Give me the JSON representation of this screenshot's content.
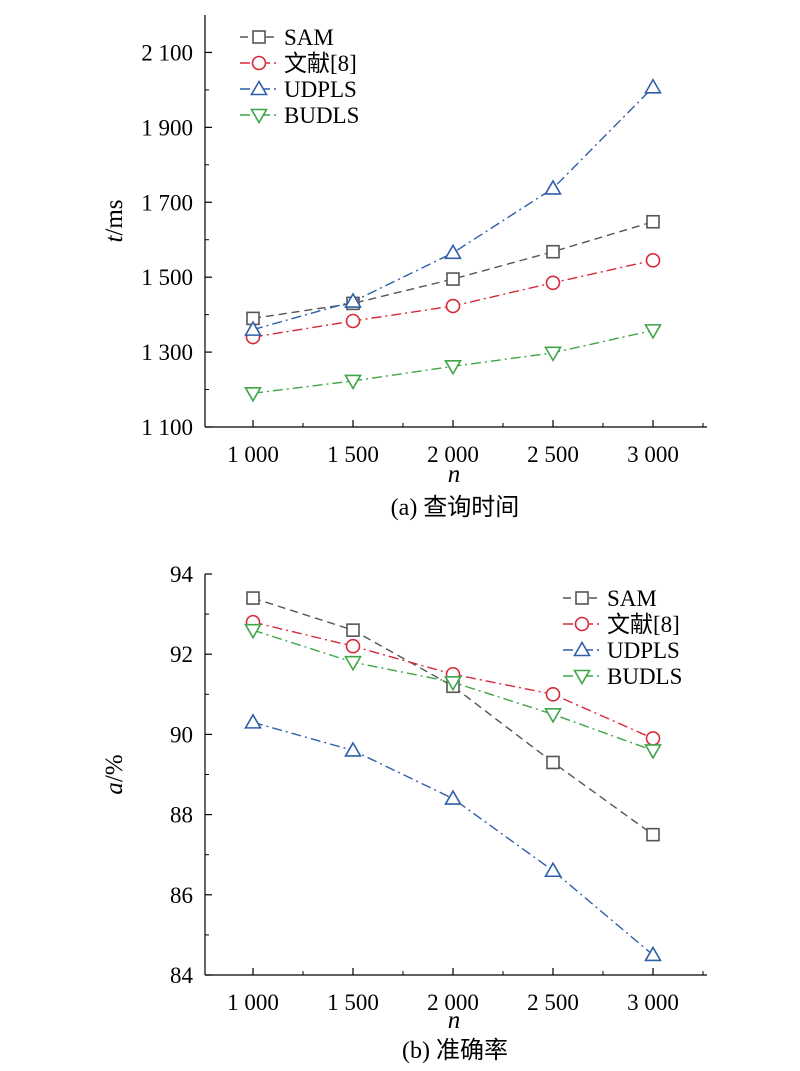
{
  "chart_data": [
    {
      "type": "line",
      "title": "(a) 查询时间",
      "xlabel": "n",
      "ylabel": "t/ms",
      "categories": [
        "1 000",
        "1 500",
        "2 000",
        "2 500",
        "3 000"
      ],
      "x": [
        1000,
        1500,
        2000,
        2500,
        3000
      ],
      "ylim": [
        1100,
        2200
      ],
      "yticks": [
        1100,
        1300,
        1500,
        1700,
        1900,
        2100
      ],
      "ytick_labels": [
        "1 100",
        "1 300",
        "1 500",
        "1 700",
        "1 900",
        "2 100"
      ],
      "legend": "top-left",
      "grid": false,
      "series": [
        {
          "name": "SAM",
          "color": "#555555",
          "marker": "square",
          "dash": "8,5",
          "values": [
            1390,
            1430,
            1495,
            1568,
            1648
          ]
        },
        {
          "name": "文献[8]",
          "color": "#d62a3a",
          "marker": "circle",
          "dash": "10,4,2,4",
          "values": [
            1340,
            1383,
            1423,
            1485,
            1545
          ]
        },
        {
          "name": "UDPLS",
          "color": "#2f5fa8",
          "marker": "triangle-up",
          "dash": "10,4,2,4",
          "values": [
            1360,
            1435,
            1565,
            1737,
            2007
          ]
        },
        {
          "name": "BUDLS",
          "color": "#3fa548",
          "marker": "triangle-down",
          "dash": "10,4,2,4",
          "values": [
            1190,
            1223,
            1262,
            1298,
            1358
          ]
        }
      ]
    },
    {
      "type": "line",
      "title": "(b) 准确率",
      "xlabel": "n",
      "ylabel": "a/%",
      "categories": [
        "1 000",
        "1 500",
        "2 000",
        "2 500",
        "3 000"
      ],
      "x": [
        1000,
        1500,
        2000,
        2500,
        3000
      ],
      "ylim": [
        84,
        94
      ],
      "yticks": [
        84,
        86,
        88,
        90,
        92,
        94
      ],
      "ytick_labels": [
        "84",
        "86",
        "88",
        "90",
        "92",
        "94"
      ],
      "legend": "top-right",
      "grid": false,
      "series": [
        {
          "name": "SAM",
          "color": "#555555",
          "marker": "square",
          "dash": "8,5",
          "values": [
            93.4,
            92.6,
            91.2,
            89.3,
            87.5
          ]
        },
        {
          "name": "文献[8]",
          "color": "#d62a3a",
          "marker": "circle",
          "dash": "10,4,2,4",
          "values": [
            92.8,
            92.2,
            91.5,
            91.0,
            89.9
          ]
        },
        {
          "name": "UDPLS",
          "color": "#2f5fa8",
          "marker": "triangle-up",
          "dash": "10,4,2,4",
          "values": [
            90.3,
            89.6,
            88.4,
            86.6,
            84.5
          ]
        },
        {
          "name": "BUDLS",
          "color": "#3fa548",
          "marker": "triangle-down",
          "dash": "10,4,2,4",
          "values": [
            92.6,
            91.8,
            91.3,
            90.5,
            89.6
          ]
        }
      ]
    }
  ]
}
